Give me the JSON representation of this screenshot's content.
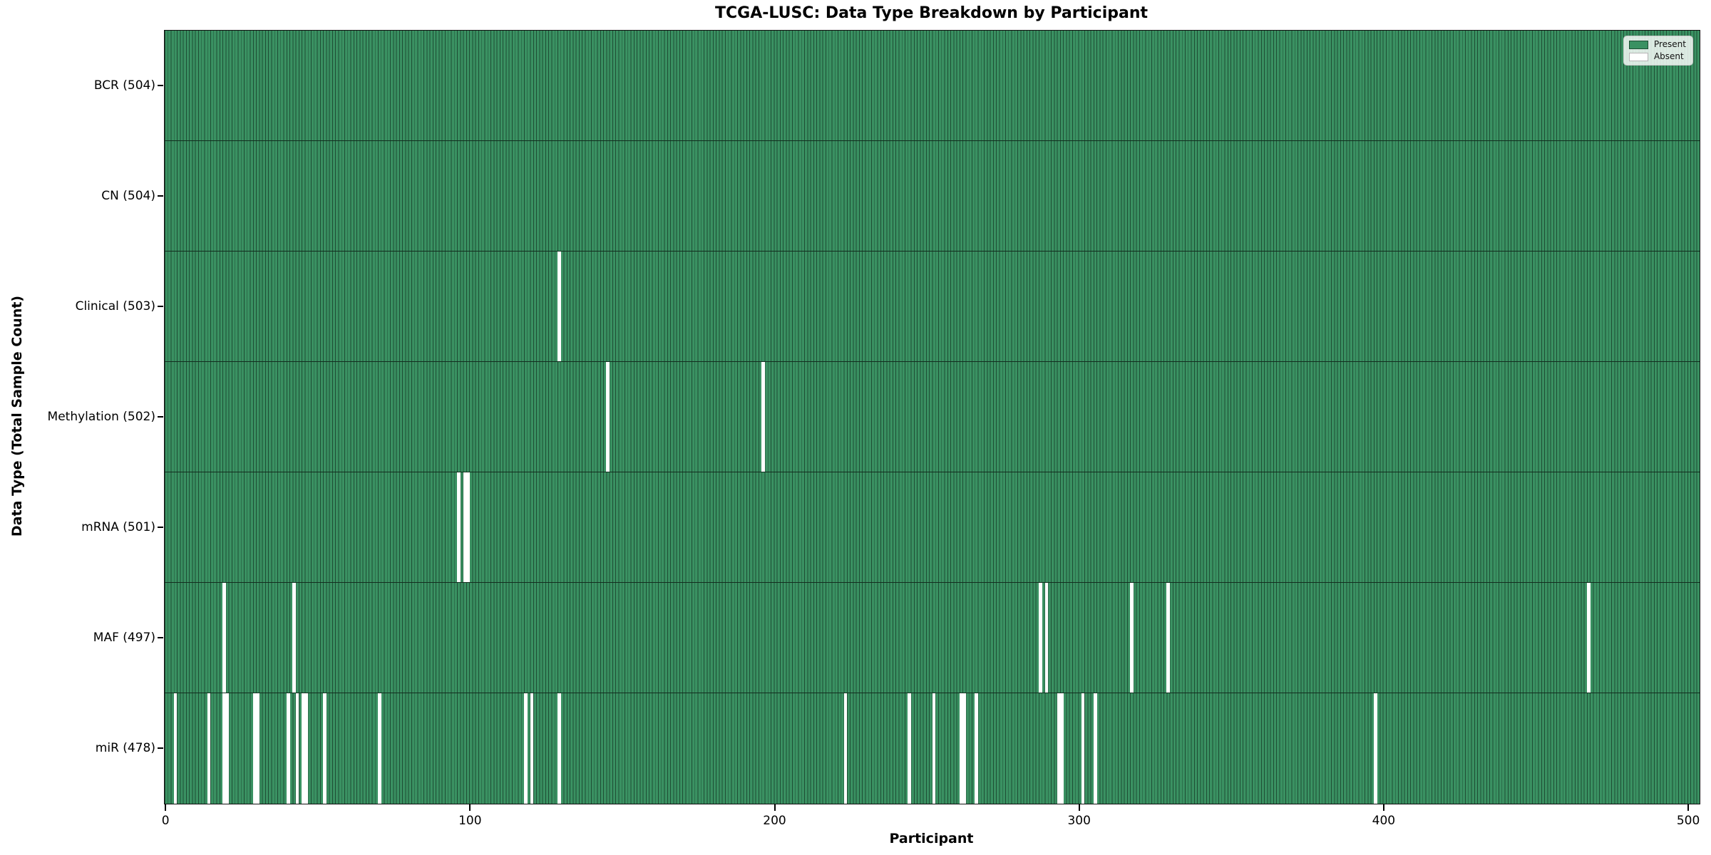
{
  "chart_data": {
    "type": "heatmap",
    "title": "TCGA-LUSC: Data Type Breakdown by Participant",
    "xlabel": "Participant",
    "ylabel": "Data Type (Total Sample Count)",
    "x_ticks": [
      0,
      100,
      200,
      300,
      400,
      500
    ],
    "x_range": [
      0,
      504
    ],
    "n_participants": 504,
    "legend": {
      "present_label": "Present",
      "absent_label": "Absent",
      "position": "upper right"
    },
    "colors": {
      "present_fill": "#3A9162",
      "bar_edge": "#1E4D34",
      "absent_fill": "#FFFFFF",
      "row_separator": "#122D1E"
    },
    "rows": [
      {
        "label": "BCR (504)",
        "data_type": "BCR",
        "total": 504,
        "absent_participants": []
      },
      {
        "label": "CN (504)",
        "data_type": "CN",
        "total": 504,
        "absent_participants": []
      },
      {
        "label": "Clinical (503)",
        "data_type": "Clinical",
        "total": 503,
        "absent_participants": [
          129
        ]
      },
      {
        "label": "Methylation (502)",
        "data_type": "Methylation",
        "total": 502,
        "absent_participants": [
          145,
          196
        ]
      },
      {
        "label": "mRNA (501)",
        "data_type": "mRNA",
        "total": 501,
        "absent_participants": [
          96,
          98,
          99
        ]
      },
      {
        "label": "MAF (497)",
        "data_type": "MAF",
        "total": 497,
        "absent_participants": [
          19,
          42,
          287,
          289,
          317,
          329,
          467
        ]
      },
      {
        "label": "miR (478)",
        "data_type": "miR",
        "total": 478,
        "absent_participants": [
          3,
          14,
          19,
          20,
          29,
          30,
          40,
          43,
          45,
          46,
          52,
          70,
          118,
          120,
          129,
          223,
          244,
          252,
          261,
          262,
          266,
          293,
          294,
          301,
          305,
          397
        ]
      }
    ]
  }
}
